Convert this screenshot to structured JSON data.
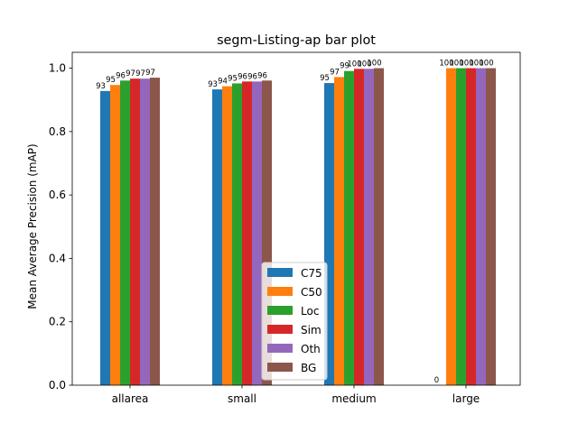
{
  "chart_data": {
    "type": "bar",
    "title": "segm-Listing-ap bar plot",
    "xlabel": "",
    "ylabel": "Mean Average Precision (mAP)",
    "categories": [
      "allarea",
      "small",
      "medium",
      "large"
    ],
    "ylim": [
      0,
      1.05
    ],
    "yticks": [
      0.0,
      0.2,
      0.4,
      0.6,
      0.8,
      1.0
    ],
    "ytick_labels": [
      "0.0",
      "0.2",
      "0.4",
      "0.6",
      "0.8",
      "1.0"
    ],
    "grid": false,
    "legend_position": "bottom-center",
    "series": [
      {
        "name": "C75",
        "color": "#1f77b4",
        "values": [
          0.928,
          0.933,
          0.953,
          0.0
        ],
        "labels": [
          "93",
          "93",
          "95",
          "0"
        ]
      },
      {
        "name": "C50",
        "color": "#ff7f0e",
        "values": [
          0.947,
          0.943,
          0.972,
          1.0
        ],
        "labels": [
          "95",
          "94",
          "97",
          "100"
        ]
      },
      {
        "name": "Loc",
        "color": "#2ca02c",
        "values": [
          0.961,
          0.952,
          0.991,
          1.0
        ],
        "labels": [
          "96",
          "95",
          "99",
          "100"
        ]
      },
      {
        "name": "Sim",
        "color": "#d62728",
        "values": [
          0.967,
          0.958,
          0.998,
          1.0
        ],
        "labels": [
          "97",
          "96",
          "100",
          "100"
        ]
      },
      {
        "name": "Oth",
        "color": "#9467bd",
        "values": [
          0.967,
          0.958,
          0.998,
          1.0
        ],
        "labels": [
          "97",
          "96",
          "100",
          "100"
        ]
      },
      {
        "name": "BG",
        "color": "#8c564b",
        "values": [
          0.97,
          0.961,
          1.0,
          1.0
        ],
        "labels": [
          "97",
          "96",
          "100",
          "100"
        ]
      }
    ]
  }
}
